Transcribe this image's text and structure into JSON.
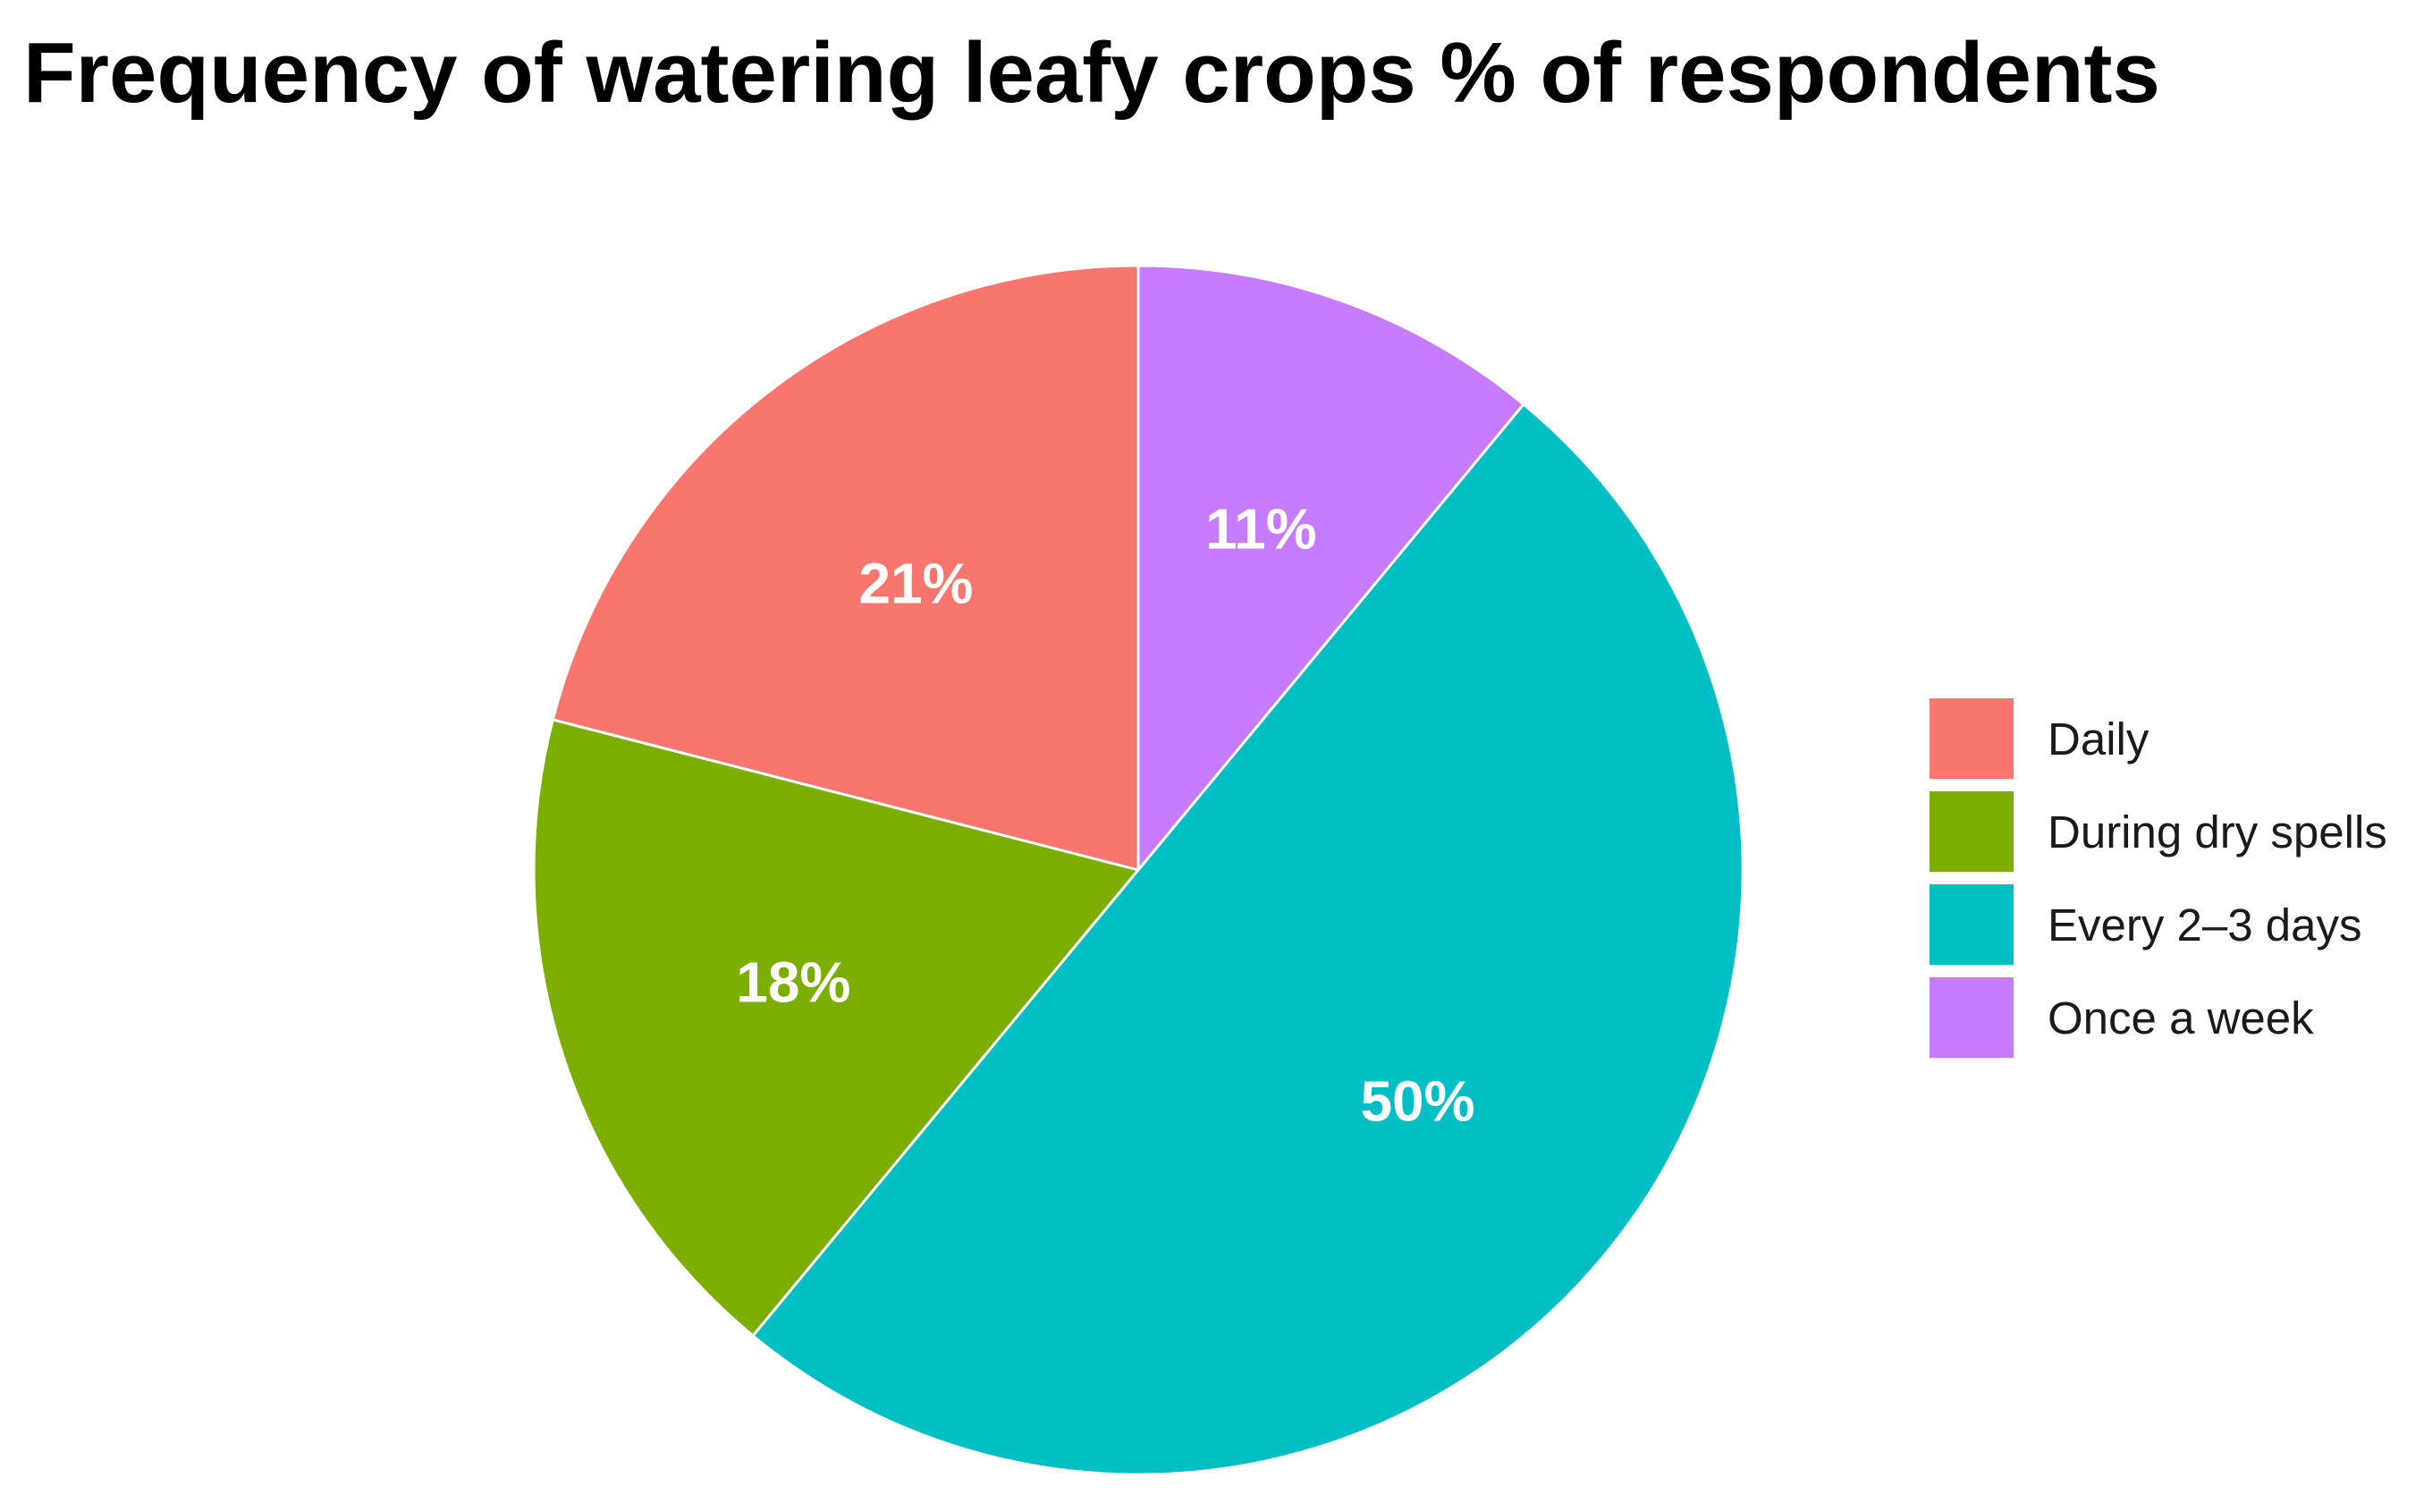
{
  "chart_data": {
    "type": "pie",
    "title": "Frequency of watering leafy crops % of respondents",
    "categories": [
      "Daily",
      "During dry spells",
      "Every 2–3 days",
      "Once a week"
    ],
    "values": [
      21,
      18,
      50,
      11
    ],
    "labels": [
      "21%",
      "18%",
      "50%",
      "11%"
    ],
    "colors": [
      "#F8766D",
      "#7CAE00",
      "#00BFC4",
      "#C77CFF"
    ],
    "start": "12 o'clock",
    "direction": "counterclockwise, order: Daily, During dry spells, Every 2–3 days, Once a week",
    "legend_position": "right"
  }
}
